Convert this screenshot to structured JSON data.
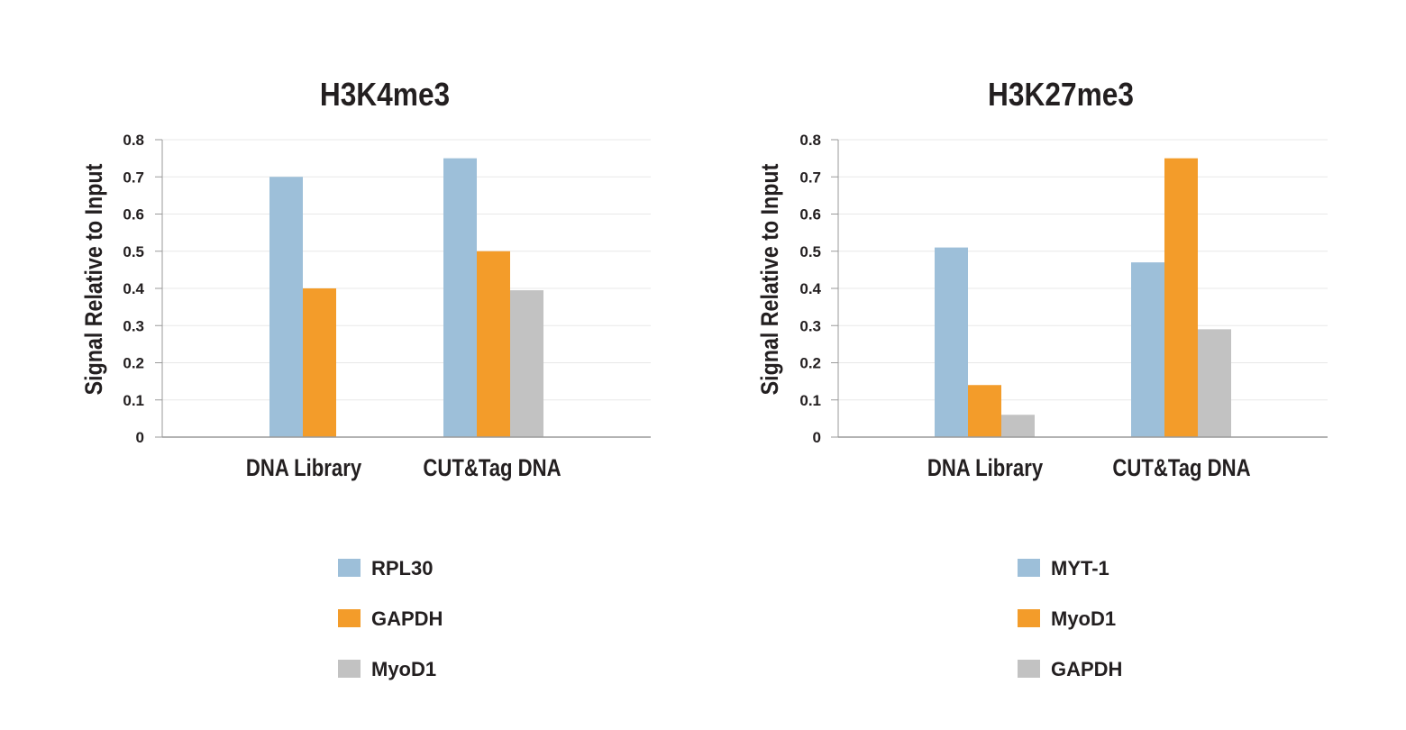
{
  "colors": {
    "blue": "#9DBFD9",
    "orange": "#F39C2A",
    "gray": "#C2C2C2",
    "grid": "#E8E8E8",
    "axis": "#9A9A9A",
    "text": "#231F20"
  },
  "chart_data": [
    {
      "type": "bar",
      "title": "H3K4me3",
      "ylabel": "Signal Relative to Input",
      "xlabel": "",
      "ylim": [
        0,
        0.8
      ],
      "yticks": [
        "0",
        "0.1",
        "0.2",
        "0.3",
        "0.4",
        "0.5",
        "0.6",
        "0.7",
        "0.8"
      ],
      "grid": true,
      "legend_placement": "bottom",
      "categories": [
        "DNA Library",
        "CUT&Tag DNA"
      ],
      "series": [
        {
          "name": "RPL30",
          "color": "#9DBFD9",
          "values": [
            0.7,
            0.75
          ]
        },
        {
          "name": "GAPDH",
          "color": "#F39C2A",
          "values": [
            0.4,
            0.5
          ]
        },
        {
          "name": "MyoD1",
          "color": "#C2C2C2",
          "values": [
            0,
            0.395
          ]
        }
      ]
    },
    {
      "type": "bar",
      "title": "H3K27me3",
      "ylabel": "Signal Relative to Input",
      "xlabel": "",
      "ylim": [
        0,
        0.8
      ],
      "yticks": [
        "0",
        "0.1",
        "0.2",
        "0.3",
        "0.4",
        "0.5",
        "0.6",
        "0.7",
        "0.8"
      ],
      "grid": true,
      "legend_placement": "bottom",
      "categories": [
        "DNA Library",
        "CUT&Tag DNA"
      ],
      "series": [
        {
          "name": "MYT-1",
          "color": "#9DBFD9",
          "values": [
            0.51,
            0.47
          ]
        },
        {
          "name": "MyoD1",
          "color": "#F39C2A",
          "values": [
            0.14,
            0.75
          ]
        },
        {
          "name": "GAPDH",
          "color": "#C2C2C2",
          "values": [
            0.06,
            0.29
          ]
        }
      ]
    }
  ]
}
